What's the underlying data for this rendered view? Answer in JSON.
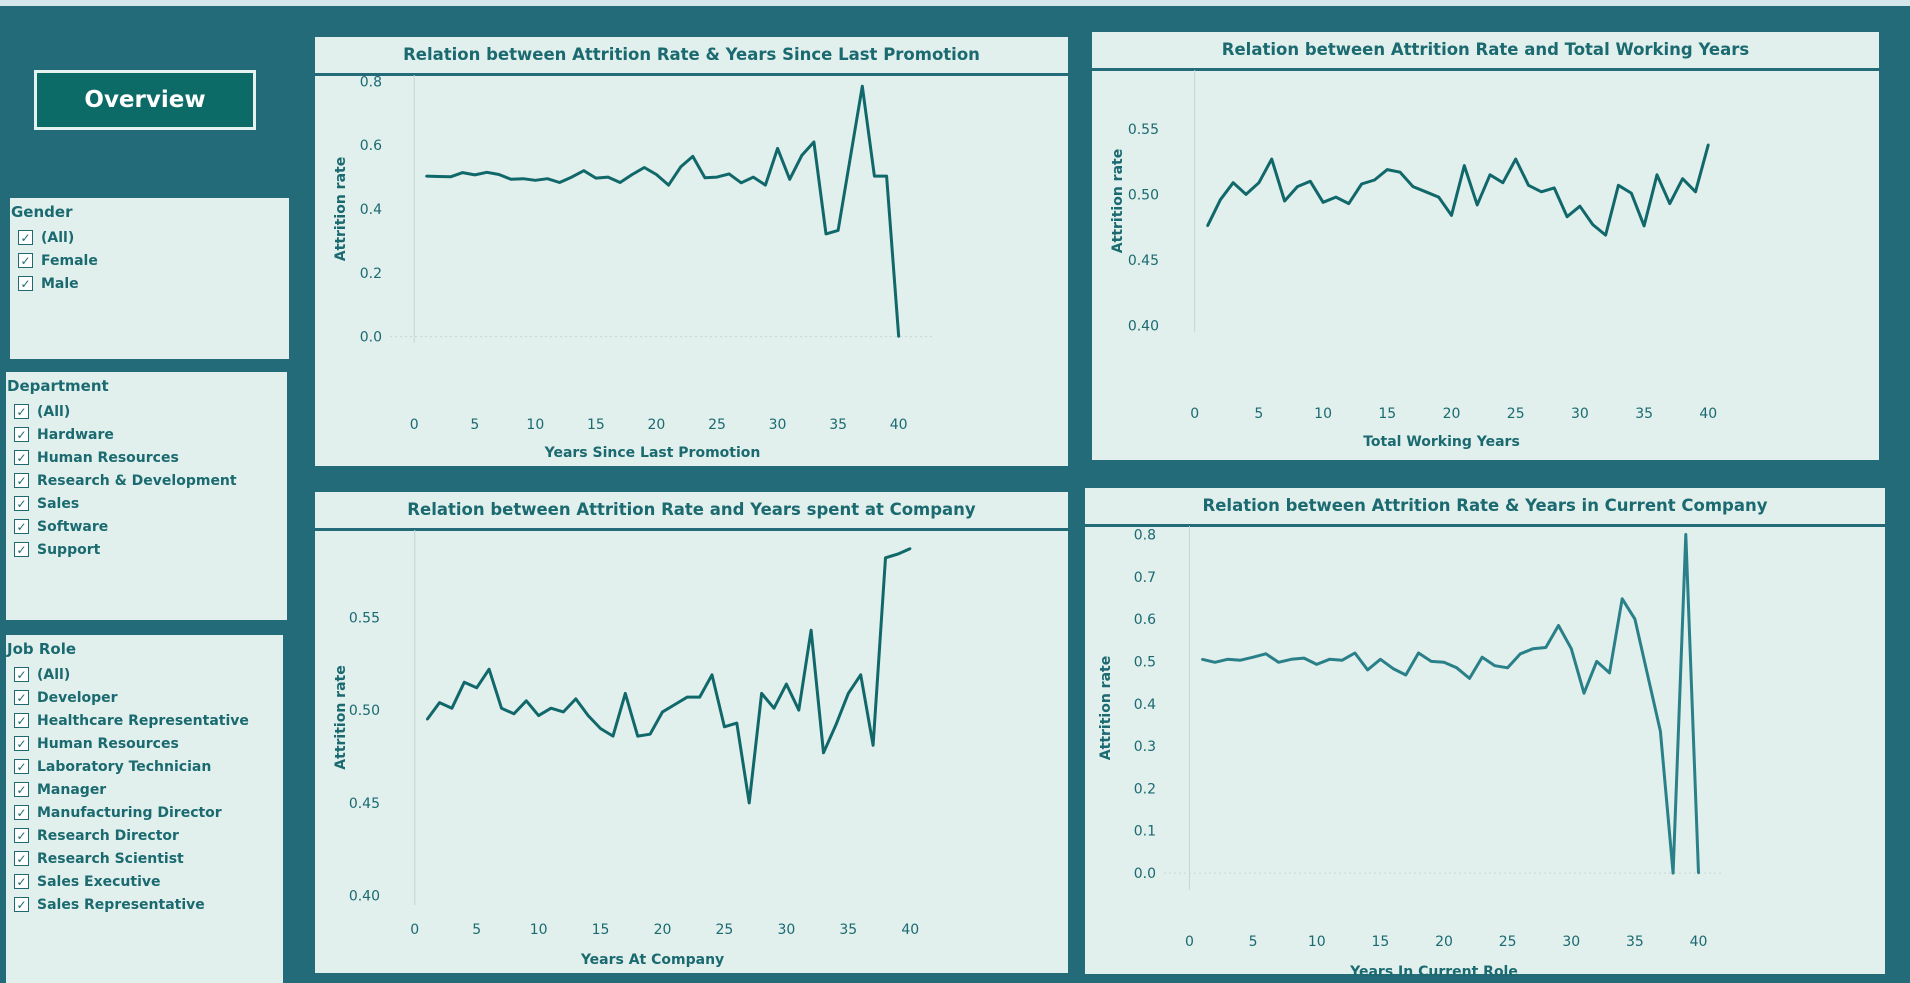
{
  "overview_button": "Overview",
  "filters": {
    "gender": {
      "title": "Gender",
      "options": [
        "(All)",
        "Female",
        "Male"
      ]
    },
    "department": {
      "title": "Department",
      "options": [
        "(All)",
        "Hardware",
        "Human Resources",
        "Research & Development",
        "Sales",
        "Software",
        "Support"
      ]
    },
    "job_role": {
      "title": "Job Role",
      "options": [
        "(All)",
        "Developer",
        "Healthcare Representative",
        "Human Resources",
        "Laboratory Technician",
        "Manager",
        "Manufacturing Director",
        "Research Director",
        "Research Scientist",
        "Sales Executive",
        "Sales Representative"
      ]
    }
  },
  "checkmark_icon": "✓",
  "colors": {
    "line_dark": "#11686a",
    "line_light": "#2a8088",
    "panel_bg": "#e1efed",
    "page_bg": "#236b78"
  },
  "chart_data": [
    {
      "type": "line",
      "title": "Relation between Attrition Rate & Years Since Last Promotion",
      "xlabel": "Years Since Last Promotion",
      "ylabel": "Attrition rate",
      "xlim": [
        -2,
        43
      ],
      "ylim": [
        -0.02,
        0.82
      ],
      "xticks": [
        0,
        5,
        10,
        15,
        20,
        25,
        30,
        35,
        40
      ],
      "yticks": [
        0.0,
        0.2,
        0.4,
        0.6,
        0.8
      ],
      "ytick_labels": [
        "0.0",
        "0.2",
        "0.4",
        "0.6",
        "0.8"
      ],
      "series": [
        {
          "x": [
            1,
            2,
            3,
            4,
            5,
            6,
            7,
            8,
            9,
            10,
            11,
            12,
            13,
            14,
            15,
            16,
            17,
            18,
            19,
            20,
            21,
            22,
            23,
            24,
            25,
            26,
            27,
            28,
            29,
            30,
            31,
            32,
            33,
            34,
            35,
            37,
            38,
            39,
            40
          ],
          "y": [
            0.503,
            0.502,
            0.501,
            0.514,
            0.507,
            0.515,
            0.508,
            0.493,
            0.495,
            0.49,
            0.495,
            0.483,
            0.5,
            0.52,
            0.497,
            0.5,
            0.483,
            0.508,
            0.53,
            0.508,
            0.475,
            0.532,
            0.565,
            0.498,
            0.5,
            0.51,
            0.482,
            0.5,
            0.475,
            0.59,
            0.493,
            0.568,
            0.61,
            0.322,
            0.333,
            0.785,
            0.503,
            0.503,
            0.0
          ]
        }
      ]
    },
    {
      "type": "line",
      "title": "Relation between Attrition Rate and Total Working Years",
      "xlabel": "Total Working Years",
      "ylabel": "Attrition rate",
      "xlim": [
        -2,
        42
      ],
      "ylim": [
        0.395,
        0.595
      ],
      "xticks": [
        0,
        5,
        10,
        15,
        20,
        25,
        30,
        35,
        40
      ],
      "yticks": [
        0.4,
        0.45,
        0.5,
        0.55
      ],
      "ytick_labels": [
        "0.40",
        "0.45",
        "0.50",
        "0.55"
      ],
      "series": [
        {
          "x": [
            1,
            2,
            3,
            4,
            5,
            6,
            7,
            8,
            9,
            10,
            11,
            12,
            13,
            14,
            15,
            16,
            17,
            18,
            19,
            20,
            21,
            22,
            23,
            24,
            25,
            26,
            27,
            28,
            29,
            30,
            31,
            32,
            33,
            34,
            35,
            36,
            37,
            38,
            39,
            40
          ],
          "y": [
            0.476,
            0.496,
            0.509,
            0.5,
            0.509,
            0.527,
            0.495,
            0.506,
            0.51,
            0.494,
            0.498,
            0.493,
            0.508,
            0.511,
            0.519,
            0.517,
            0.506,
            0.502,
            0.498,
            0.484,
            0.522,
            0.492,
            0.515,
            0.509,
            0.527,
            0.507,
            0.502,
            0.505,
            0.483,
            0.491,
            0.477,
            0.469,
            0.507,
            0.501,
            0.476,
            0.515,
            0.493,
            0.512,
            0.502,
            0.538
          ]
        }
      ]
    },
    {
      "type": "line",
      "title": "Relation between Attrition Rate and Years spent at Company",
      "xlabel": "Years At Company",
      "ylabel": "Attrition rate",
      "xlim": [
        -2,
        42
      ],
      "ylim": [
        0.395,
        0.597
      ],
      "xticks": [
        0,
        5,
        10,
        15,
        20,
        25,
        30,
        35,
        40
      ],
      "yticks": [
        0.4,
        0.45,
        0.5,
        0.55
      ],
      "ytick_labels": [
        "0.40",
        "0.45",
        "0.50",
        "0.55"
      ],
      "series": [
        {
          "x": [
            1,
            2,
            3,
            4,
            5,
            6,
            7,
            8,
            9,
            10,
            11,
            12,
            13,
            14,
            15,
            16,
            17,
            18,
            19,
            20,
            21,
            22,
            23,
            24,
            25,
            26,
            27,
            28,
            29,
            30,
            31,
            32,
            33,
            34,
            35,
            36,
            37,
            38,
            39,
            40
          ],
          "y": [
            0.495,
            0.504,
            0.501,
            0.515,
            0.512,
            0.522,
            0.501,
            0.498,
            0.505,
            0.497,
            0.501,
            0.499,
            0.506,
            0.497,
            0.49,
            0.486,
            0.509,
            0.486,
            0.487,
            0.499,
            0.503,
            0.507,
            0.507,
            0.519,
            0.491,
            0.493,
            0.45,
            0.509,
            0.501,
            0.514,
            0.5,
            0.543,
            0.477,
            0.492,
            0.509,
            0.519,
            0.481,
            0.582,
            0.584,
            0.587
          ]
        }
      ]
    },
    {
      "type": "line",
      "title": "Relation between Attrition Rate & Years in Current Company",
      "xlabel": "Years In Current Role",
      "ylabel": "Attrition rate",
      "xlim": [
        -2,
        42
      ],
      "ylim": [
        -0.04,
        0.82
      ],
      "xticks": [
        0,
        5,
        10,
        15,
        20,
        25,
        30,
        35,
        40
      ],
      "yticks": [
        0.0,
        0.1,
        0.2,
        0.3,
        0.4,
        0.5,
        0.6,
        0.7,
        0.8
      ],
      "ytick_labels": [
        "0.0",
        "0.1",
        "0.2",
        "0.3",
        "0.4",
        "0.5",
        "0.6",
        "0.7",
        "0.8"
      ],
      "series": [
        {
          "x": [
            1,
            2,
            3,
            4,
            5,
            6,
            7,
            8,
            9,
            10,
            11,
            12,
            13,
            14,
            15,
            16,
            17,
            18,
            19,
            20,
            21,
            22,
            23,
            24,
            25,
            26,
            27,
            28,
            29,
            30,
            31,
            32,
            33,
            34,
            35,
            37,
            38,
            39,
            40
          ],
          "y": [
            0.505,
            0.498,
            0.505,
            0.503,
            0.51,
            0.518,
            0.498,
            0.505,
            0.508,
            0.493,
            0.505,
            0.503,
            0.52,
            0.48,
            0.505,
            0.483,
            0.468,
            0.52,
            0.5,
            0.498,
            0.485,
            0.46,
            0.51,
            0.49,
            0.485,
            0.518,
            0.53,
            0.533,
            0.585,
            0.53,
            0.425,
            0.5,
            0.473,
            0.648,
            0.6,
            0.335,
            0.0,
            0.8,
            0.0
          ]
        }
      ]
    }
  ]
}
